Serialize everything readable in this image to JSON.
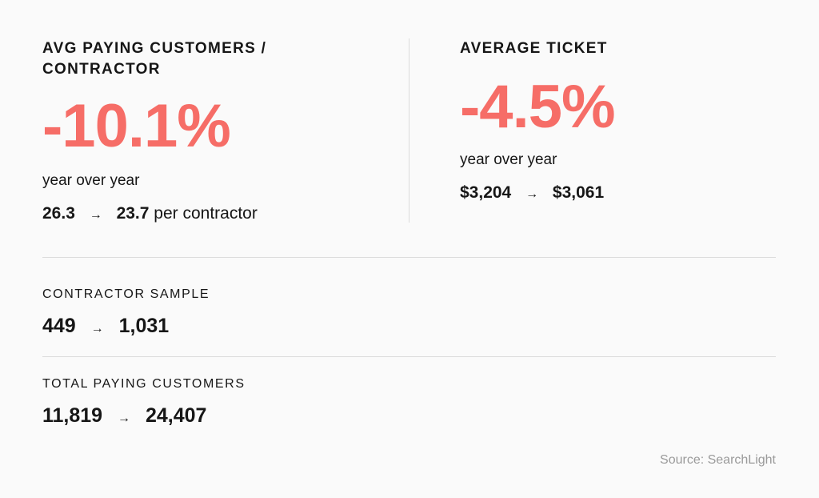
{
  "left_stat": {
    "title_line1": "AVG PAYING CUSTOMERS /",
    "title_line2": "CONTRACTOR",
    "value": "-10.1%",
    "subtitle": "year over year",
    "from": "26.3",
    "arrow": "→",
    "to": "23.7",
    "suffix": "per contractor"
  },
  "right_stat": {
    "title": "AVERAGE TICKET",
    "value": "-4.5%",
    "subtitle": "year over year",
    "from": "$3,204",
    "arrow": "→",
    "to": "$3,061"
  },
  "contractor_sample": {
    "label": "CONTRACTOR SAMPLE",
    "from": "449",
    "arrow": "→",
    "to": "1,031"
  },
  "total_paying_customers": {
    "label": "TOTAL PAYING CUSTOMERS",
    "from": "11,819",
    "arrow": "→",
    "to": "24,407"
  },
  "source": "Source: SearchLight",
  "colors": {
    "accent": "#f66d67",
    "text": "#161616",
    "muted": "#9a9a9a",
    "divider": "#dcdcdc",
    "background": "#fafafa"
  }
}
